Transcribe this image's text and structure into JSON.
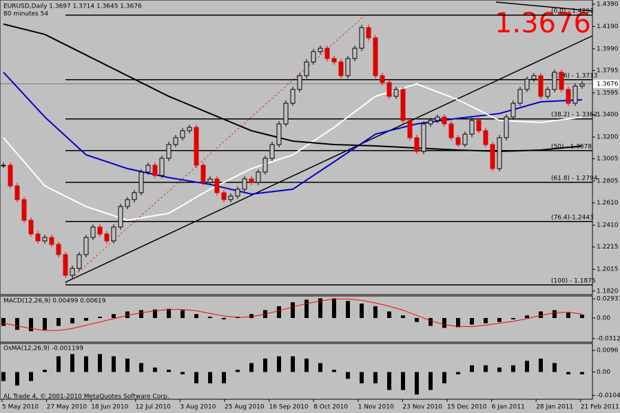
{
  "header": {
    "symbol_line": "EURUSD,Daily  1.3697 1.3714 1.3645 1.3676",
    "timer": "80 minutes 54"
  },
  "footer": "AL Trade 4, © 2001-2010 MetaQuotes Software Corp.",
  "chart_data": [
    {
      "type": "candlestick",
      "closes": [
        1.2947,
        1.2762,
        1.2639,
        1.2454,
        1.2331,
        1.2269,
        1.23,
        1.2238,
        1.2146,
        1.1961,
        1.2023,
        1.2146,
        1.23,
        1.2393,
        1.2331,
        1.2269,
        1.2393,
        1.2577,
        1.2639,
        1.2701,
        1.2886,
        1.2947,
        1.2855,
        1.3009,
        1.3132,
        1.3194,
        1.3256,
        1.3286,
        1.2947,
        1.2793,
        1.2824,
        1.2701,
        1.2639,
        1.267,
        1.2732,
        1.2824,
        1.2793,
        1.2886,
        1.3009,
        1.3132,
        1.3317,
        1.3502,
        1.3626,
        1.3749,
        1.3872,
        1.3965,
        1.3995,
        1.3903,
        1.3872,
        1.3749,
        1.3903,
        1.3995,
        1.418,
        1.4088,
        1.3749,
        1.3687,
        1.3564,
        1.3626,
        1.3348,
        1.3194,
        1.3071,
        1.3317,
        1.3348,
        1.3379,
        1.3317,
        1.3194,
        1.3132,
        1.3225,
        1.3348,
        1.3256,
        1.3132,
        1.2917,
        1.3194,
        1.3379,
        1.3502,
        1.3626,
        1.3718,
        1.3749,
        1.3564,
        1.3626,
        1.378,
        1.3626,
        1.3502,
        1.3656,
        1.3676
      ],
      "moving_averages": [
        {
          "color": "#0000cc",
          "x": [
            0,
            6,
            12,
            18,
            24,
            30,
            36,
            42,
            48,
            54,
            60,
            66,
            72,
            78,
            84
          ],
          "values": [
            1.378,
            1.3379,
            1.304,
            1.2917,
            1.2836,
            1.2775,
            1.2688,
            1.2732,
            1.2978,
            1.3225,
            1.3317,
            1.3367,
            1.341,
            1.3515,
            1.3533
          ]
        },
        {
          "color": "#ffffff",
          "x": [
            0,
            6,
            12,
            18,
            24,
            30,
            36,
            42,
            48,
            54,
            60,
            66,
            72,
            78,
            84
          ],
          "values": [
            1.3194,
            1.2762,
            1.2577,
            1.2454,
            1.2516,
            1.2732,
            1.2917,
            1.304,
            1.3286,
            1.3564,
            1.3675,
            1.3533,
            1.3348,
            1.333,
            1.3379
          ]
        },
        {
          "color": "#000000",
          "x": [
            0,
            6,
            12,
            18,
            24,
            30,
            36,
            42,
            48,
            54,
            60,
            66,
            72,
            78,
            84
          ],
          "values": [
            1.4211,
            1.4119,
            1.3934,
            1.3749,
            1.3564,
            1.341,
            1.3256,
            1.3163,
            1.3132,
            1.312,
            1.3101,
            1.3083,
            1.3071,
            1.3083,
            1.312
          ]
        }
      ],
      "ylim": [
        1.1788,
        1.4427
      ],
      "yticks": [
        {
          "value": 1.439,
          "label": "1.4390"
        },
        {
          "value": 1.419,
          "label": "1.4190"
        },
        {
          "value": 1.399,
          "label": "1.3990"
        },
        1.3795,
        1.3595,
        {
          "value": 1.34,
          "label": "1.3400"
        },
        {
          "value": 1.32,
          "label": "1.3200"
        },
        1.3005,
        1.2805,
        {
          "value": 1.261,
          "label": "1.2610"
        },
        {
          "value": 1.241,
          "label": "1.2410"
        },
        1.2215,
        1.2015,
        {
          "value": 1.182,
          "label": "1.1820"
        }
      ],
      "levels": [
        {
          "value": 1.4291,
          "label": "(0.0) - 1.4291"
        },
        {
          "value": 1.3713,
          "label": "(23.6) - 1.3713"
        },
        {
          "value": 1.3362,
          "label": "(38.2) - 1.3362"
        },
        {
          "value": 1.3078,
          "label": "(50) - 1.3078"
        },
        {
          "value": 1.2794,
          "label": "(61.8) - 1.2794"
        },
        {
          "value": 1.2443,
          "label": "(76.4)-1.2443"
        },
        {
          "value": 1.1875,
          "label": "(100) - 1.1875"
        }
      ],
      "last_price": 1.3676,
      "x_labels": [
        "5 May 2010",
        "27 May 2010",
        "18 Jun 2010",
        "12 Jul 2010",
        "3 Aug 2010",
        "25 Aug 2010",
        "16 Sep 2010",
        "8 Oct 2010",
        "1 Nov 2010",
        "23 Nov 2010",
        "15 Dec 2010",
        "6 Jan 2011",
        "28 Jan 2011",
        "21 Feb 2011"
      ]
    },
    {
      "type": "macd",
      "title": "MACD(12,26,9) 0.00499 0.00619",
      "series": [
        {
          "color": "#000000",
          "values": [
            -0.012,
            -0.018,
            -0.02,
            -0.018,
            -0.012,
            -0.008,
            -0.004,
            0.002,
            0.006,
            0.01,
            0.012,
            0.013,
            0.014,
            0.012,
            0.006,
            0.002,
            -0.002,
            0.002,
            0.006,
            0.012,
            0.018,
            0.024,
            0.028,
            0.03,
            0.03,
            0.026,
            0.022,
            0.018,
            0.01,
            0.004,
            -0.006,
            -0.012,
            -0.015,
            -0.014,
            -0.01,
            -0.008,
            -0.006,
            -0.002,
            0.004,
            0.01,
            0.012,
            0.008,
            0.005
          ]
        },
        {
          "color": "#ff0000",
          "values": [
            -0.008,
            -0.012,
            -0.016,
            -0.019,
            -0.019,
            -0.016,
            -0.011,
            -0.006,
            -0.001,
            0.004,
            0.008,
            0.011,
            0.013,
            0.013,
            0.011,
            0.007,
            0.003,
            0.001,
            0.002,
            0.006,
            0.011,
            0.017,
            0.022,
            0.026,
            0.029,
            0.029,
            0.027,
            0.023,
            0.018,
            0.012,
            0.004,
            -0.004,
            -0.01,
            -0.013,
            -0.013,
            -0.011,
            -0.008,
            -0.005,
            -0.001,
            0.004,
            0.008,
            0.009,
            0.006
          ]
        }
      ],
      "ylim": [
        -0.0367,
        0.0336
      ],
      "yticks": [
        0.02937,
        {
          "value": 0,
          "label": "0.00"
        },
        -0.03128
      ]
    },
    {
      "type": "osma",
      "title": "OsMA(12,26,9) -0.001199",
      "color": "#000000",
      "values": [
        -0.004,
        -0.006,
        -0.004,
        0.001,
        0.007,
        0.008,
        0.007,
        0.008,
        0.007,
        0.006,
        0.004,
        0.002,
        0.001,
        -0.001,
        -0.005,
        -0.005,
        -0.005,
        0.001,
        0.004,
        0.006,
        0.007,
        0.007,
        0.006,
        0.004,
        0.001,
        -0.003,
        -0.005,
        -0.005,
        -0.008,
        -0.008,
        -0.01,
        -0.008,
        -0.005,
        -0.001,
        0.003,
        0.003,
        0.002,
        0.003,
        0.005,
        0.006,
        0.004,
        -0.001,
        -0.001
      ],
      "ylim": [
        -0.0121,
        0.0127
      ],
      "yticks": [
        0.0096,
        {
          "value": 0,
          "label": "0.00"
        },
        -0.0104
      ]
    }
  ]
}
